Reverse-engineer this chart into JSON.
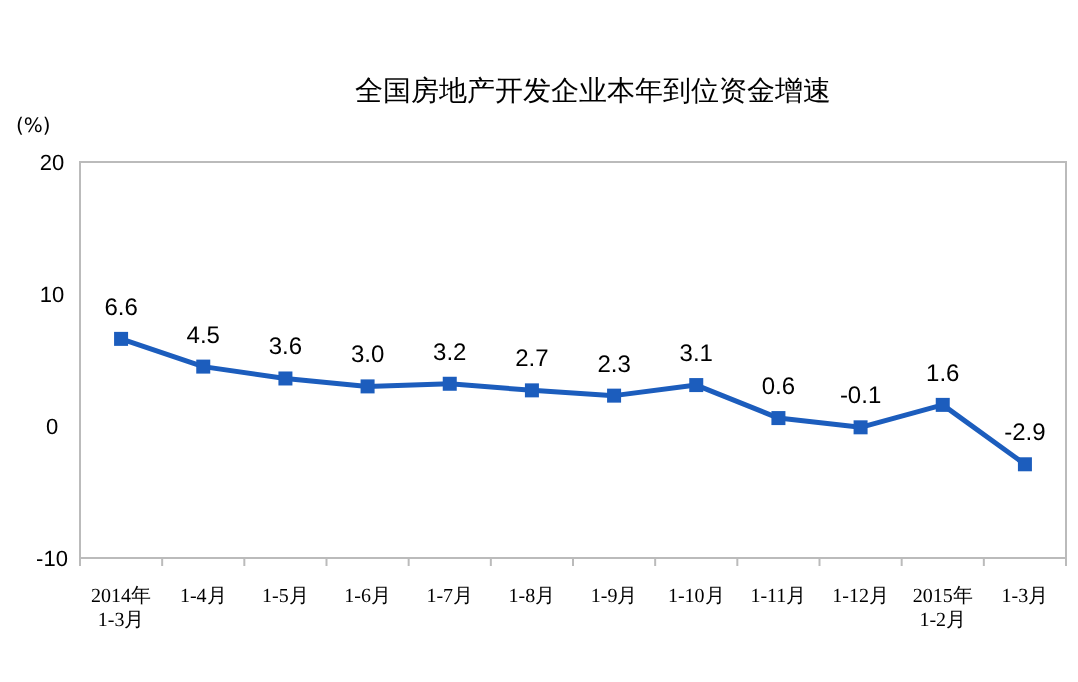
{
  "chart_data": {
    "type": "line",
    "title": "全国房地产开发企业本年到位资金增速",
    "ylabel": "(%)",
    "categories": [
      "2014年\n1-3月",
      "1-4月",
      "1-5月",
      "1-6月",
      "1-7月",
      "1-8月",
      "1-9月",
      "1-10月",
      "1-11月",
      "1-12月",
      "2015年\n1-2月",
      "1-3月"
    ],
    "series": [
      {
        "color": "#1c5dbd",
        "values": [
          6.6,
          4.5,
          3.6,
          3.0,
          3.2,
          2.7,
          2.3,
          3.1,
          0.6,
          -0.1,
          1.6,
          -2.9
        ]
      }
    ],
    "value_labels": [
      "6.6",
      "4.5",
      "3.6",
      "3.0",
      "3.2",
      "2.7",
      "2.3",
      "3.1",
      "0.6",
      "-0.1",
      "1.6",
      "-2.9"
    ],
    "ylim": [
      -10,
      20
    ],
    "yticks": [
      -10,
      0,
      10,
      20
    ],
    "grid": false,
    "marker": "square",
    "line_style": "solid"
  }
}
